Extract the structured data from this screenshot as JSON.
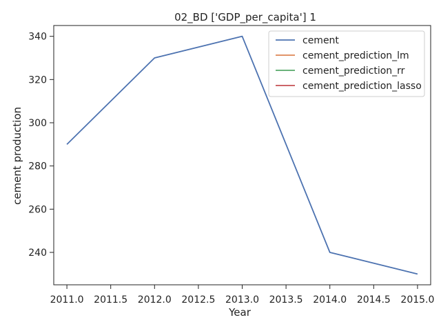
{
  "chart_data": {
    "type": "line",
    "title": "02_BD ['GDP_per_capita'] 1",
    "xlabel": "Year",
    "ylabel": "cement production",
    "xlim": [
      2010.85,
      2015.15
    ],
    "ylim": [
      225,
      345
    ],
    "xticks": [
      2011.0,
      2011.5,
      2012.0,
      2012.5,
      2013.0,
      2013.5,
      2014.0,
      2014.5,
      2015.0
    ],
    "xtick_labels": [
      "2011.0",
      "2011.5",
      "2012.0",
      "2012.5",
      "2013.0",
      "2013.5",
      "2014.0",
      "2014.5",
      "2015.0"
    ],
    "yticks": [
      240,
      260,
      280,
      300,
      320,
      340
    ],
    "ytick_labels": [
      "240",
      "260",
      "280",
      "300",
      "320",
      "340"
    ],
    "grid": false,
    "legend_position": "top-right",
    "series": [
      {
        "name": "cement",
        "color": "#4c72b0",
        "x": [
          2011,
          2012,
          2013,
          2014,
          2015
        ],
        "y": [
          290,
          330,
          340,
          240,
          230
        ]
      },
      {
        "name": "cement_prediction_lm",
        "color": "#dd8452",
        "x": [],
        "y": []
      },
      {
        "name": "cement_prediction_rr",
        "color": "#55a868",
        "x": [],
        "y": []
      },
      {
        "name": "cement_prediction_lasso",
        "color": "#c44e52",
        "x": [],
        "y": []
      }
    ]
  }
}
